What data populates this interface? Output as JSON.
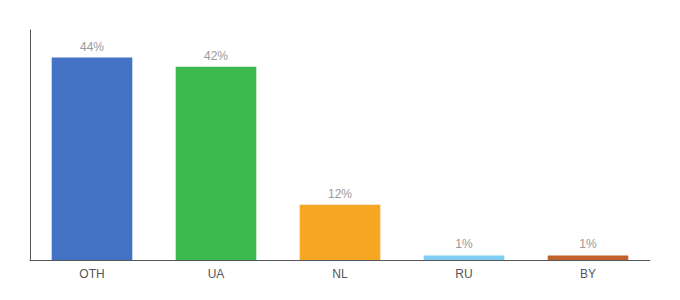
{
  "chart_data": {
    "type": "bar",
    "categories": [
      "OTH",
      "UA",
      "NL",
      "RU",
      "BY"
    ],
    "values": [
      44,
      42,
      12,
      1,
      1
    ],
    "value_labels": [
      "44%",
      "42%",
      "12%",
      "1%",
      "1%"
    ],
    "colors": [
      "#4472c4",
      "#3dba4e",
      "#f5a623",
      "#7ecef4",
      "#c0622a"
    ],
    "ylim": [
      0,
      50
    ],
    "data_labels": true,
    "tick_labels": "x",
    "grid": false
  }
}
